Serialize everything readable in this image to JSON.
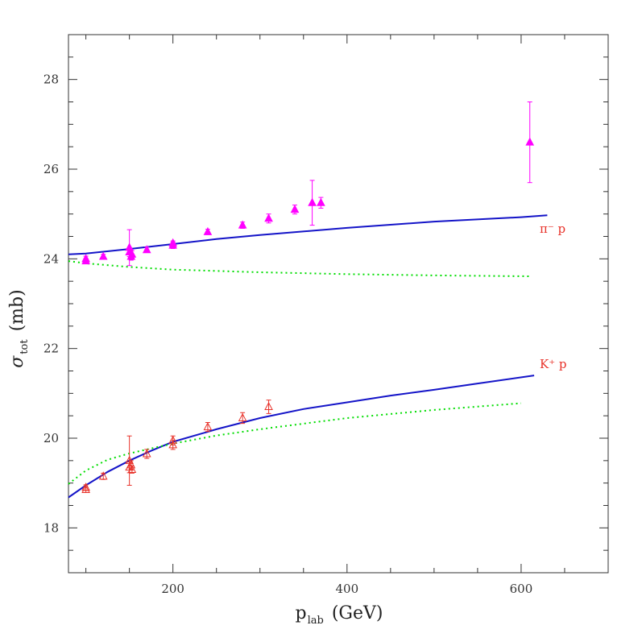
{
  "chart_data": {
    "type": "scatter",
    "xlabel": {
      "main": "p",
      "sub": "lab",
      "unit": "(GeV)"
    },
    "ylabel": {
      "main": "σ",
      "sub": "tot",
      "unit": "(mb)"
    },
    "xlim": [
      80,
      700
    ],
    "ylim": [
      17,
      29
    ],
    "x_ticks": [
      200,
      400,
      600
    ],
    "y_ticks": [
      18,
      20,
      22,
      24,
      26,
      28
    ],
    "annotations": [
      {
        "text": "π⁻ p",
        "x": 610,
        "y": 24.7
      },
      {
        "text": "K⁺ p",
        "x": 610,
        "y": 21.7
      }
    ],
    "series": [
      {
        "marker": "filled-triangle",
        "color": "#ff00ff",
        "points": [
          {
            "x": 100,
            "y": 24.0,
            "err": 0.06
          },
          {
            "x": 100,
            "y": 23.95,
            "err": 0.06
          },
          {
            "x": 120,
            "y": 24.05,
            "err": 0.05
          },
          {
            "x": 150,
            "y": 24.25,
            "err": 0.4
          },
          {
            "x": 150,
            "y": 24.15,
            "err": 0.1
          },
          {
            "x": 152,
            "y": 24.05,
            "err": 0.08
          },
          {
            "x": 153,
            "y": 24.1,
            "err": 0.08
          },
          {
            "x": 170,
            "y": 24.2,
            "err": 0.06
          },
          {
            "x": 200,
            "y": 24.3,
            "err": 0.07
          },
          {
            "x": 200,
            "y": 24.35,
            "err": 0.05
          },
          {
            "x": 240,
            "y": 24.6,
            "err": 0.06
          },
          {
            "x": 280,
            "y": 24.75,
            "err": 0.07
          },
          {
            "x": 310,
            "y": 24.9,
            "err": 0.1
          },
          {
            "x": 340,
            "y": 25.1,
            "err": 0.1
          },
          {
            "x": 360,
            "y": 25.25,
            "err": 0.5
          },
          {
            "x": 370,
            "y": 25.25,
            "err": 0.12
          },
          {
            "x": 610,
            "y": 26.6,
            "err": 0.9
          }
        ]
      },
      {
        "marker": "open-triangle",
        "color": "#e8322a",
        "points": [
          {
            "x": 100,
            "y": 18.9,
            "err": 0.06
          },
          {
            "x": 100,
            "y": 18.85,
            "err": 0.06
          },
          {
            "x": 120,
            "y": 19.15,
            "err": 0.07
          },
          {
            "x": 150,
            "y": 19.5,
            "err": 0.55
          },
          {
            "x": 150,
            "y": 19.35,
            "err": 0.12
          },
          {
            "x": 152,
            "y": 19.4,
            "err": 0.1
          },
          {
            "x": 153,
            "y": 19.3,
            "err": 0.08
          },
          {
            "x": 170,
            "y": 19.65,
            "err": 0.1
          },
          {
            "x": 200,
            "y": 19.85,
            "err": 0.1
          },
          {
            "x": 200,
            "y": 19.95,
            "err": 0.1
          },
          {
            "x": 240,
            "y": 20.25,
            "err": 0.1
          },
          {
            "x": 280,
            "y": 20.45,
            "err": 0.12
          },
          {
            "x": 310,
            "y": 20.7,
            "err": 0.15
          }
        ]
      },
      {
        "style": "solid",
        "color": "#1414c8",
        "points": [
          {
            "x": 80,
            "y": 24.1
          },
          {
            "x": 100,
            "y": 24.12
          },
          {
            "x": 150,
            "y": 24.22
          },
          {
            "x": 200,
            "y": 24.33
          },
          {
            "x": 250,
            "y": 24.44
          },
          {
            "x": 300,
            "y": 24.53
          },
          {
            "x": 400,
            "y": 24.69
          },
          {
            "x": 500,
            "y": 24.83
          },
          {
            "x": 600,
            "y": 24.93
          },
          {
            "x": 630,
            "y": 24.97
          }
        ]
      },
      {
        "style": "dotted",
        "color": "#00dd00",
        "points": [
          {
            "x": 80,
            "y": 23.95
          },
          {
            "x": 100,
            "y": 23.9
          },
          {
            "x": 150,
            "y": 23.82
          },
          {
            "x": 200,
            "y": 23.76
          },
          {
            "x": 300,
            "y": 23.7
          },
          {
            "x": 400,
            "y": 23.66
          },
          {
            "x": 500,
            "y": 23.63
          },
          {
            "x": 610,
            "y": 23.61
          }
        ]
      },
      {
        "style": "solid",
        "color": "#1414c8",
        "points": [
          {
            "x": 80,
            "y": 18.68
          },
          {
            "x": 100,
            "y": 18.95
          },
          {
            "x": 125,
            "y": 19.25
          },
          {
            "x": 150,
            "y": 19.5
          },
          {
            "x": 175,
            "y": 19.72
          },
          {
            "x": 200,
            "y": 19.92
          },
          {
            "x": 250,
            "y": 20.2
          },
          {
            "x": 300,
            "y": 20.45
          },
          {
            "x": 350,
            "y": 20.65
          },
          {
            "x": 400,
            "y": 20.8
          },
          {
            "x": 450,
            "y": 20.95
          },
          {
            "x": 500,
            "y": 21.08
          },
          {
            "x": 550,
            "y": 21.22
          },
          {
            "x": 615,
            "y": 21.4
          }
        ]
      },
      {
        "style": "dotted",
        "color": "#00dd00",
        "points": [
          {
            "x": 80,
            "y": 18.98
          },
          {
            "x": 100,
            "y": 19.28
          },
          {
            "x": 125,
            "y": 19.52
          },
          {
            "x": 150,
            "y": 19.66
          },
          {
            "x": 200,
            "y": 19.88
          },
          {
            "x": 250,
            "y": 20.06
          },
          {
            "x": 300,
            "y": 20.2
          },
          {
            "x": 400,
            "y": 20.45
          },
          {
            "x": 500,
            "y": 20.63
          },
          {
            "x": 600,
            "y": 20.78
          }
        ]
      }
    ]
  }
}
